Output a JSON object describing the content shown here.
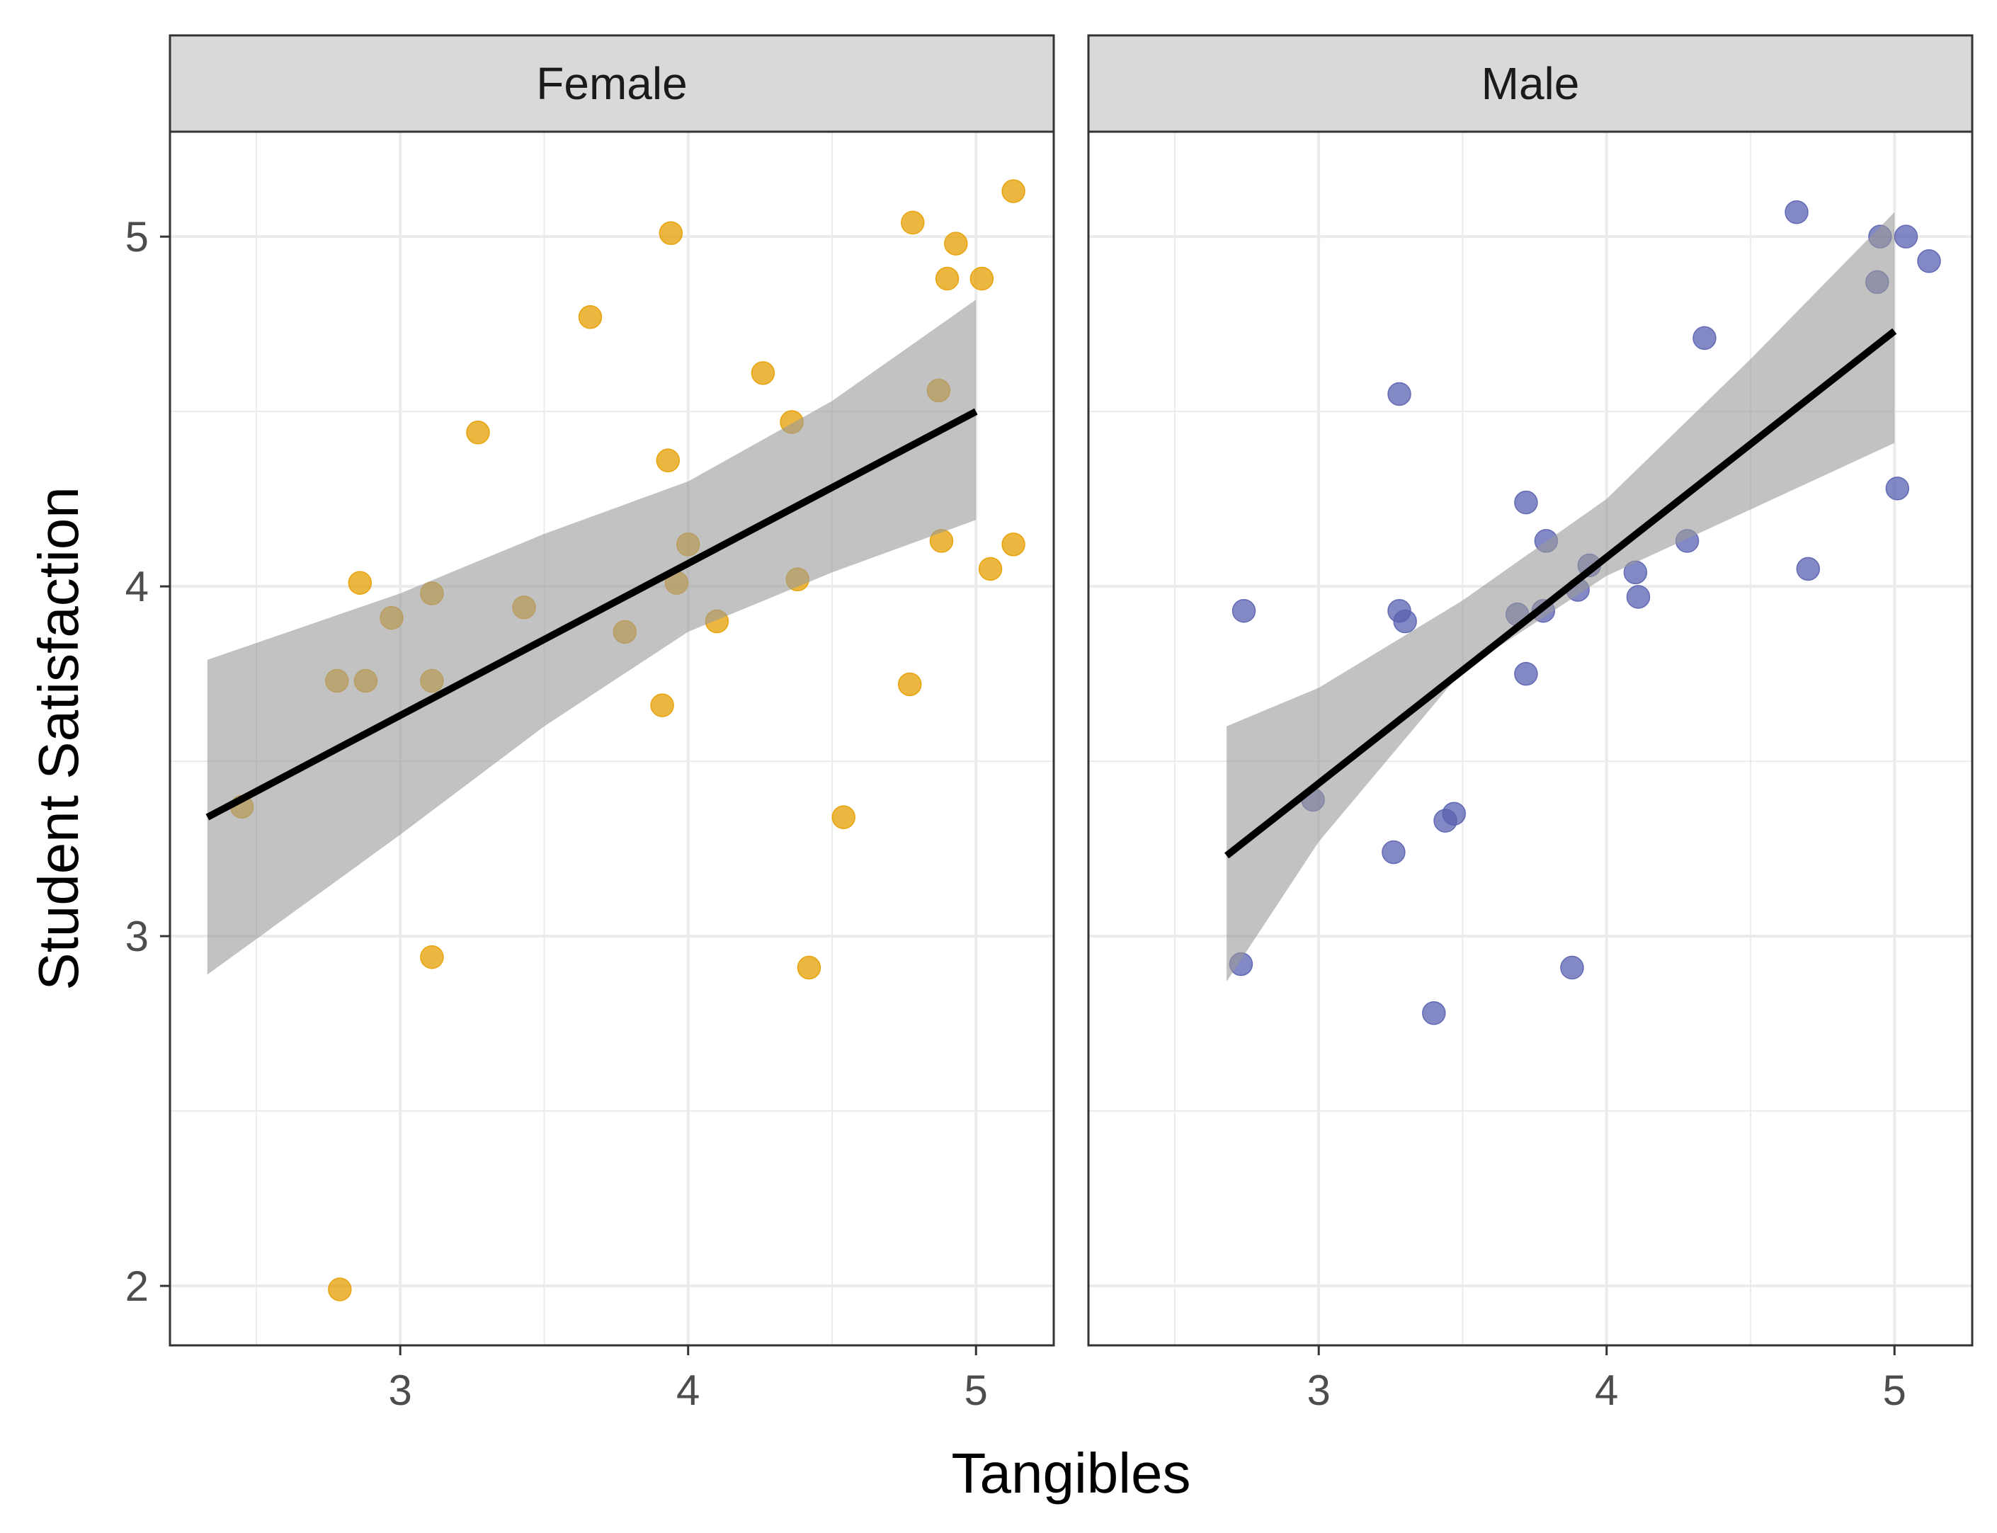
{
  "chart_data": {
    "type": "scatter",
    "xlabel": "Tangibles",
    "ylabel": "Student Satisfaction",
    "xlim": [
      2.2,
      5.27
    ],
    "ylim": [
      1.83,
      5.3
    ],
    "x_ticks": [
      3,
      4,
      5
    ],
    "y_ticks": [
      2,
      3,
      4,
      5
    ],
    "grid": true,
    "legend": "none",
    "panels": [
      {
        "name": "Female",
        "color": "#E69F00",
        "points": [
          {
            "x": 2.45,
            "y": 3.37
          },
          {
            "x": 2.78,
            "y": 3.73
          },
          {
            "x": 2.79,
            "y": 1.99
          },
          {
            "x": 2.86,
            "y": 4.01
          },
          {
            "x": 2.88,
            "y": 3.73
          },
          {
            "x": 2.97,
            "y": 3.91
          },
          {
            "x": 3.11,
            "y": 3.98
          },
          {
            "x": 3.11,
            "y": 3.73
          },
          {
            "x": 3.11,
            "y": 2.94
          },
          {
            "x": 3.27,
            "y": 4.44
          },
          {
            "x": 3.43,
            "y": 3.94
          },
          {
            "x": 3.66,
            "y": 4.77
          },
          {
            "x": 3.78,
            "y": 3.87
          },
          {
            "x": 3.91,
            "y": 3.66
          },
          {
            "x": 3.93,
            "y": 4.36
          },
          {
            "x": 3.94,
            "y": 5.01
          },
          {
            "x": 3.96,
            "y": 4.01
          },
          {
            "x": 4.0,
            "y": 4.12
          },
          {
            "x": 4.1,
            "y": 3.9
          },
          {
            "x": 4.26,
            "y": 4.61
          },
          {
            "x": 4.36,
            "y": 4.47
          },
          {
            "x": 4.38,
            "y": 4.02
          },
          {
            "x": 4.42,
            "y": 2.91
          },
          {
            "x": 4.54,
            "y": 3.34
          },
          {
            "x": 4.77,
            "y": 3.72
          },
          {
            "x": 4.78,
            "y": 5.04
          },
          {
            "x": 4.87,
            "y": 4.56
          },
          {
            "x": 4.88,
            "y": 4.13
          },
          {
            "x": 4.9,
            "y": 4.88
          },
          {
            "x": 4.93,
            "y": 4.98
          },
          {
            "x": 5.02,
            "y": 4.88
          },
          {
            "x": 5.05,
            "y": 4.05
          },
          {
            "x": 5.13,
            "y": 5.13
          },
          {
            "x": 5.13,
            "y": 4.12
          }
        ],
        "fit": {
          "x": [
            2.33,
            5.0
          ],
          "y": [
            3.34,
            4.5
          ]
        },
        "band": {
          "x": [
            2.33,
            3.0,
            3.5,
            4.0,
            4.5,
            5.0
          ],
          "lower": [
            2.89,
            3.29,
            3.6,
            3.87,
            4.04,
            4.19
          ],
          "upper": [
            3.79,
            3.98,
            4.15,
            4.3,
            4.53,
            4.82
          ]
        }
      },
      {
        "name": "Male",
        "color": "#5A62B0",
        "points": [
          {
            "x": 2.73,
            "y": 2.92
          },
          {
            "x": 2.74,
            "y": 3.93
          },
          {
            "x": 2.98,
            "y": 3.39
          },
          {
            "x": 3.26,
            "y": 3.24
          },
          {
            "x": 3.28,
            "y": 4.55
          },
          {
            "x": 3.28,
            "y": 3.93
          },
          {
            "x": 3.3,
            "y": 3.9
          },
          {
            "x": 3.4,
            "y": 2.78
          },
          {
            "x": 3.44,
            "y": 3.33
          },
          {
            "x": 3.47,
            "y": 3.35
          },
          {
            "x": 3.69,
            "y": 3.92
          },
          {
            "x": 3.72,
            "y": 4.24
          },
          {
            "x": 3.72,
            "y": 3.75
          },
          {
            "x": 3.78,
            "y": 3.93
          },
          {
            "x": 3.79,
            "y": 4.13
          },
          {
            "x": 3.88,
            "y": 2.91
          },
          {
            "x": 3.9,
            "y": 3.99
          },
          {
            "x": 3.94,
            "y": 4.06
          },
          {
            "x": 4.1,
            "y": 4.04
          },
          {
            "x": 4.11,
            "y": 3.97
          },
          {
            "x": 4.28,
            "y": 4.13
          },
          {
            "x": 4.34,
            "y": 4.71
          },
          {
            "x": 4.66,
            "y": 5.07
          },
          {
            "x": 4.7,
            "y": 4.05
          },
          {
            "x": 4.94,
            "y": 4.87
          },
          {
            "x": 4.95,
            "y": 5.0
          },
          {
            "x": 5.01,
            "y": 4.28
          },
          {
            "x": 5.04,
            "y": 5.0
          },
          {
            "x": 5.12,
            "y": 4.93
          }
        ],
        "fit": {
          "x": [
            2.68,
            5.0
          ],
          "y": [
            3.23,
            4.73
          ]
        },
        "band": {
          "x": [
            2.68,
            3.0,
            3.5,
            4.0,
            4.5,
            5.0
          ],
          "lower": [
            2.87,
            3.27,
            3.76,
            4.03,
            4.22,
            4.41
          ],
          "upper": [
            3.6,
            3.71,
            3.96,
            4.25,
            4.65,
            5.07
          ]
        }
      }
    ]
  }
}
